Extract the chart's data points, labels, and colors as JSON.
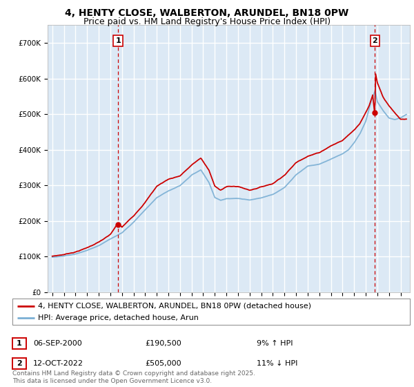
{
  "title": "4, HENTY CLOSE, WALBERTON, ARUNDEL, BN18 0PW",
  "subtitle": "Price paid vs. HM Land Registry's House Price Index (HPI)",
  "ylim": [
    0,
    750000
  ],
  "yticks": [
    0,
    100000,
    200000,
    300000,
    400000,
    500000,
    600000,
    700000
  ],
  "ytick_labels": [
    "£0",
    "£100K",
    "£200K",
    "£300K",
    "£400K",
    "£500K",
    "£600K",
    "£700K"
  ],
  "xlim_start": 1994.6,
  "xlim_end": 2025.8,
  "background_color": "#dce9f5",
  "grid_color": "#ffffff",
  "red_color": "#cc0000",
  "blue_color": "#7aafd4",
  "marker1_x": 2000.67,
  "marker1_y": 190500,
  "marker2_x": 2022.78,
  "marker2_y": 505000,
  "legend_line1": "4, HENTY CLOSE, WALBERTON, ARUNDEL, BN18 0PW (detached house)",
  "legend_line2": "HPI: Average price, detached house, Arun",
  "annotation1_date": "06-SEP-2000",
  "annotation1_price": "£190,500",
  "annotation1_hpi": "9% ↑ HPI",
  "annotation2_date": "12-OCT-2022",
  "annotation2_price": "£505,000",
  "annotation2_hpi": "11% ↓ HPI",
  "copyright_text": "Contains HM Land Registry data © Crown copyright and database right 2025.\nThis data is licensed under the Open Government Licence v3.0.",
  "title_fontsize": 10,
  "subtitle_fontsize": 9,
  "tick_fontsize": 7.5,
  "legend_fontsize": 8,
  "annotation_fontsize": 8,
  "copyright_fontsize": 6.5
}
